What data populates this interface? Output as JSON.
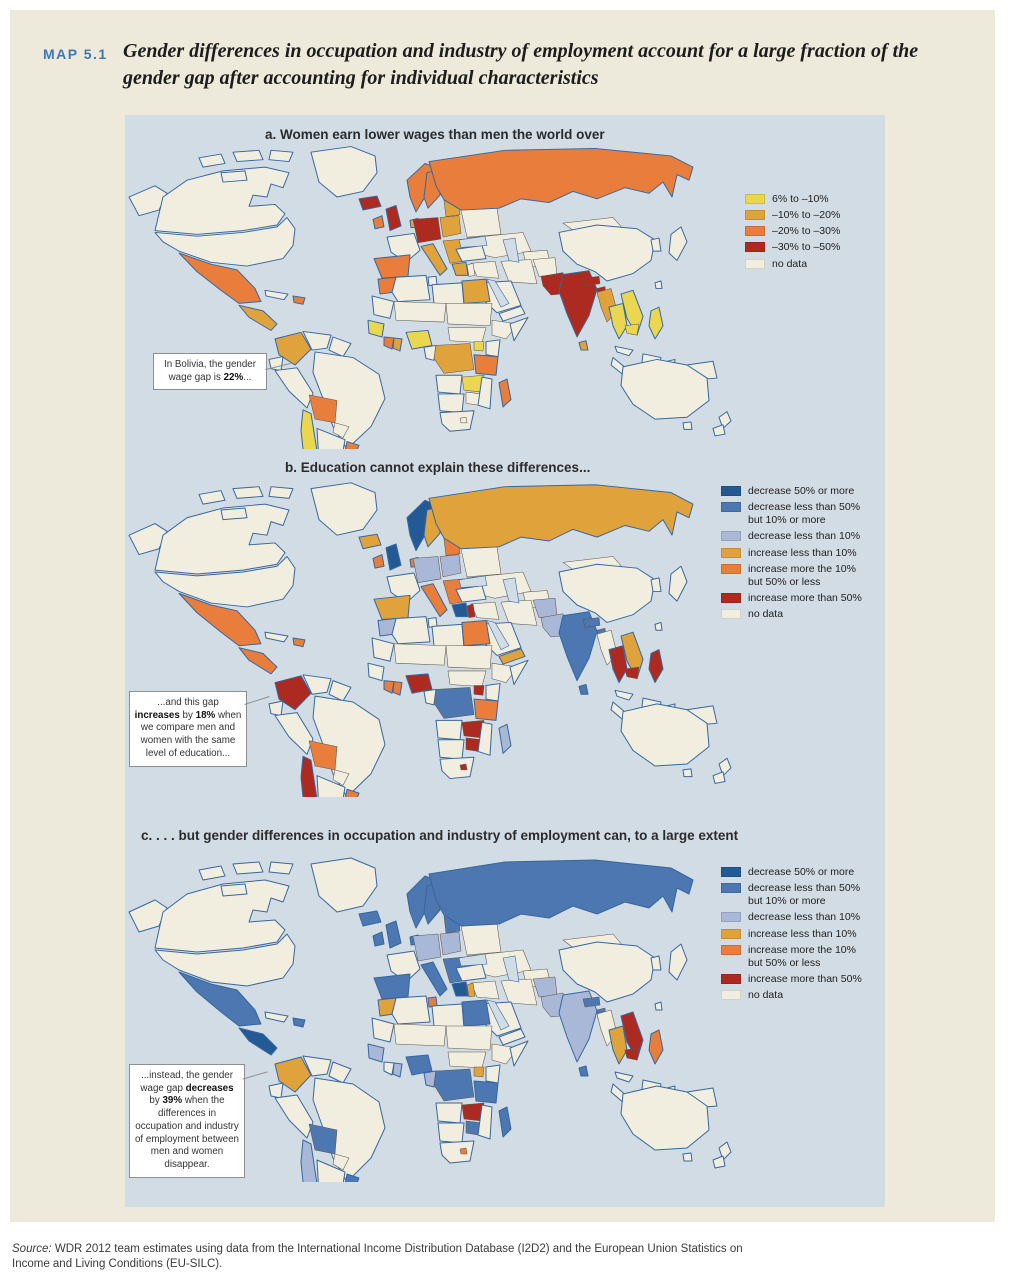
{
  "figure": {
    "label": "MAP 5.1",
    "title_line1": "Gender differences in occupation and industry of employment account for a large fraction of the",
    "title_line2": "gender gap after accounting for individual characteristics"
  },
  "palette": {
    "yellow": "#ead74f",
    "amber": "#e0a33c",
    "orange": "#e87d3c",
    "red": "#ad2a20",
    "blue_dark": "#235a96",
    "blue_med": "#4c77b0",
    "periwinkle": "#aab8d8",
    "nodata": "#f1eee0",
    "ocean": "#d2dce5"
  },
  "maps": [
    {
      "id": "a",
      "title": "a. Women earn lower wages than men the world over",
      "legend": [
        {
          "color": "yellow",
          "lines": [
            "6% to –10%"
          ]
        },
        {
          "color": "amber",
          "lines": [
            "–10% to –20%"
          ]
        },
        {
          "color": "orange",
          "lines": [
            "–20% to –30%"
          ]
        },
        {
          "color": "red",
          "lines": [
            "–30% to –50%"
          ]
        },
        {
          "color": "nodata",
          "lines": [
            "no data"
          ]
        }
      ],
      "annotation": {
        "text": "In Bolivia, the gender wage gap is **22%**..."
      },
      "regions": {
        "iceland": "red",
        "uk": "red",
        "ireland": "orange",
        "norway": "orange",
        "sweden": "orange",
        "finland": "orange",
        "denmark": "amber",
        "germany": "red",
        "poland": "amber",
        "baltics": "amber",
        "iberia": "orange",
        "italy": "amber",
        "balkans": "amber",
        "greece": "amber",
        "russia": "orange",
        "morocco": "orange",
        "egypt": "amber",
        "guinea": "yellow",
        "ivorycoast": "orange",
        "ghana": "amber",
        "nigeria": "yellow",
        "drc": "amber",
        "uganda": "yellow",
        "tanzania": "orange",
        "zambia": "yellow",
        "madagascar": "orange",
        "mexico": "orange",
        "guatemala": "amber",
        "hispaniola": "orange",
        "colombia": "amber",
        "bolivia": "orange",
        "chile": "yellow",
        "uruguay": "orange",
        "pakistan": "red",
        "india": "red",
        "nepal": "red",
        "bangladesh": "red",
        "srilanka": "amber",
        "burma": "amber",
        "thailand": "yellow",
        "laos_vietnam": "yellow",
        "cambodia": "yellow",
        "philippines": "yellow"
      }
    },
    {
      "id": "b",
      "title": "b. Education cannot explain these differences...",
      "legend": [
        {
          "color": "blue_dark",
          "lines": [
            "decrease 50% or more"
          ]
        },
        {
          "color": "blue_med",
          "lines": [
            "decrease less than 50%",
            "but 10% or more"
          ]
        },
        {
          "color": "periwinkle",
          "lines": [
            "decrease less than 10%"
          ]
        },
        {
          "color": "amber",
          "lines": [
            "increase less than 10%"
          ]
        },
        {
          "color": "orange",
          "lines": [
            "increase more the 10%",
            "but 50% or less"
          ]
        },
        {
          "color": "red",
          "lines": [
            "increase more than 50%"
          ]
        },
        {
          "color": "nodata",
          "lines": [
            "no data"
          ]
        }
      ],
      "annotation": {
        "text": "...and this gap **increases** by **18%** when we compare men and women with the same level of education..."
      },
      "regions": {
        "iceland": "amber",
        "uk": "blue_dark",
        "ireland": "orange",
        "norway": "blue_dark",
        "sweden": "amber",
        "finland": "amber",
        "denmark": "orange",
        "germany": "periwinkle",
        "poland": "periwinkle",
        "baltics": "orange",
        "iberia": "amber",
        "italy": "orange",
        "balkans": "orange",
        "greece": "blue_dark",
        "russia": "amber",
        "morocco": "periwinkle",
        "egypt": "orange",
        "levant": "red",
        "yemen": "amber",
        "ivorycoast": "orange",
        "ghana": "orange",
        "nigeria": "red",
        "drc": "blue_med",
        "uganda": "red",
        "tanzania": "orange",
        "zambia": "red",
        "zimbabwe": "red",
        "lesotho": "red",
        "madagascar": "periwinkle",
        "mexico": "orange",
        "guatemala": "orange",
        "hispaniola": "orange",
        "colombia": "red",
        "bolivia": "orange",
        "chile": "red",
        "uruguay": "orange",
        "afghanistan": "periwinkle",
        "pakistan": "periwinkle",
        "india": "blue_med",
        "nepal": "blue_med",
        "bangladesh": "blue_med",
        "srilanka": "blue_med",
        "thailand": "red",
        "laos_vietnam": "amber",
        "cambodia": "red",
        "philippines": "red"
      }
    },
    {
      "id": "c",
      "title": "c. . . . but gender differences in occupation and industry of employment can, to a large extent",
      "legend": [
        {
          "color": "blue_dark",
          "lines": [
            "decrease 50% or more"
          ]
        },
        {
          "color": "blue_med",
          "lines": [
            "decrease less than 50%",
            "but 10% or more"
          ]
        },
        {
          "color": "periwinkle",
          "lines": [
            "decrease less than 10%"
          ]
        },
        {
          "color": "amber",
          "lines": [
            "increase less than 10%"
          ]
        },
        {
          "color": "orange",
          "lines": [
            "increase more the 10%",
            "but 50% or less"
          ]
        },
        {
          "color": "red",
          "lines": [
            "increase more than 50%"
          ]
        },
        {
          "color": "nodata",
          "lines": [
            "no data"
          ]
        }
      ],
      "annotation": {
        "text": "...instead, the gender wage gap **decreases** by **39%** when the differences in occupation and industry of employment between men and women disappear."
      },
      "regions": {
        "iceland": "blue_med",
        "uk": "blue_med",
        "ireland": "blue_med",
        "norway": "blue_med",
        "sweden": "blue_med",
        "finland": "blue_med",
        "denmark": "blue_med",
        "germany": "periwinkle",
        "poland": "periwinkle",
        "baltics": "blue_med",
        "iberia": "blue_med",
        "italy": "blue_med",
        "balkans": "blue_med",
        "greece": "blue_dark",
        "russia": "blue_med",
        "morocco": "amber",
        "tunisia": "orange",
        "egypt": "blue_med",
        "levant": "amber",
        "guinea": "periwinkle",
        "ghana": "periwinkle",
        "nigeria": "blue_med",
        "cameroon": "periwinkle",
        "drc": "blue_med",
        "uganda": "amber",
        "tanzania": "blue_med",
        "zambia": "red",
        "zimbabwe": "blue_med",
        "lesotho": "orange",
        "madagascar": "blue_med",
        "mexico": "blue_med",
        "guatemala": "blue_dark",
        "hispaniola": "blue_med",
        "colombia": "amber",
        "bolivia": "blue_med",
        "chile": "periwinkle",
        "uruguay": "blue_med",
        "afghanistan": "periwinkle",
        "pakistan": "periwinkle",
        "india": "periwinkle",
        "nepal": "blue_med",
        "bangladesh": "blue_med",
        "srilanka": "blue_med",
        "thailand": "amber",
        "laos_vietnam": "red",
        "cambodia": "red",
        "philippines": "orange"
      }
    }
  ],
  "source": {
    "prefix": "Source:",
    "text": " WDR 2012 team estimates using data from the International Income Distribution Database (I2D2) and the European Union Statistics on Income and Living Conditions (EU-SILC)."
  }
}
